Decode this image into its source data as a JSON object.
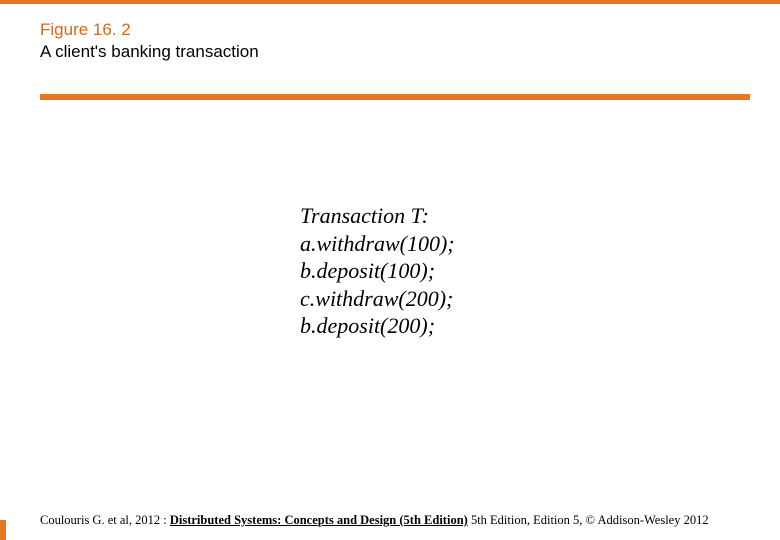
{
  "colors": {
    "orange": "#e87722",
    "orange_dark": "#d2691e",
    "black": "#000000",
    "white": "#ffffff"
  },
  "header": {
    "figure_number": "Figure 16. 2",
    "figure_title": "A client's banking transaction"
  },
  "transaction": {
    "title": "Transaction T:",
    "lines": [
      "a.withdraw(100);",
      "b.deposit(100);",
      "c.withdraw(200);",
      "b.deposit(200);"
    ]
  },
  "footer": {
    "prefix": "Coulouris G. et al, 2012 : ",
    "bold_underline": "Distributed Systems: Concepts and Design (5th Edition)",
    "suffix": " 5th Edition, Edition 5, © Addison-Wesley 2012"
  },
  "style": {
    "header_fontsize": 17,
    "body_fontsize": 22,
    "footer_fontsize": 12.5,
    "top_bar_height": 4,
    "sep_bar_height": 6
  }
}
